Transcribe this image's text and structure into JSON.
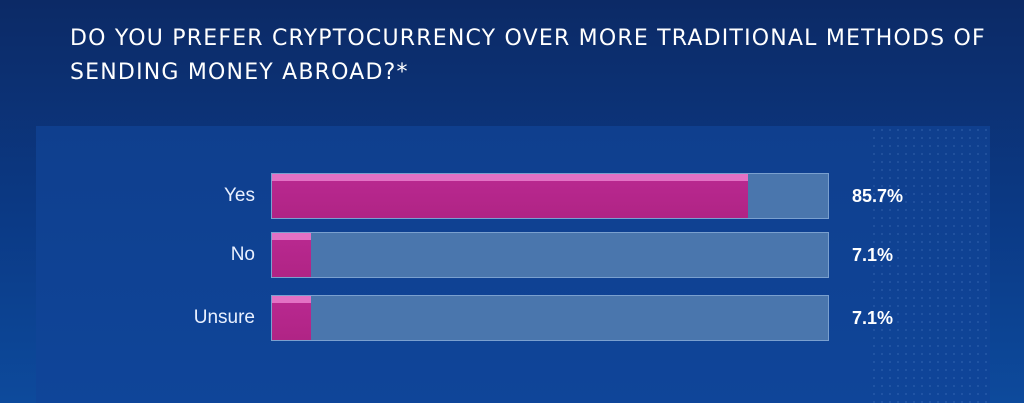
{
  "title": "DO YOU PREFER CRYPTOCURRENCY OVER MORE TRADITIONAL METHODS OF SENDING MONEY ABROAD?*",
  "colors": {
    "bar_fill": "#b02485",
    "track": "#4a76ad",
    "background": "#0b3a86"
  },
  "chart_data": {
    "type": "bar",
    "orientation": "horizontal",
    "title": "DO YOU PREFER CRYPTOCURRENCY OVER MORE TRADITIONAL METHODS OF SENDING MONEY ABROAD?*",
    "categories": [
      "Yes",
      "No",
      "Unsure"
    ],
    "values": [
      85.7,
      7.1,
      7.1
    ],
    "value_labels": [
      "85.7%",
      "7.1%",
      "7.1%"
    ],
    "xlim": [
      0,
      100
    ],
    "grid": false,
    "legend": "none"
  }
}
